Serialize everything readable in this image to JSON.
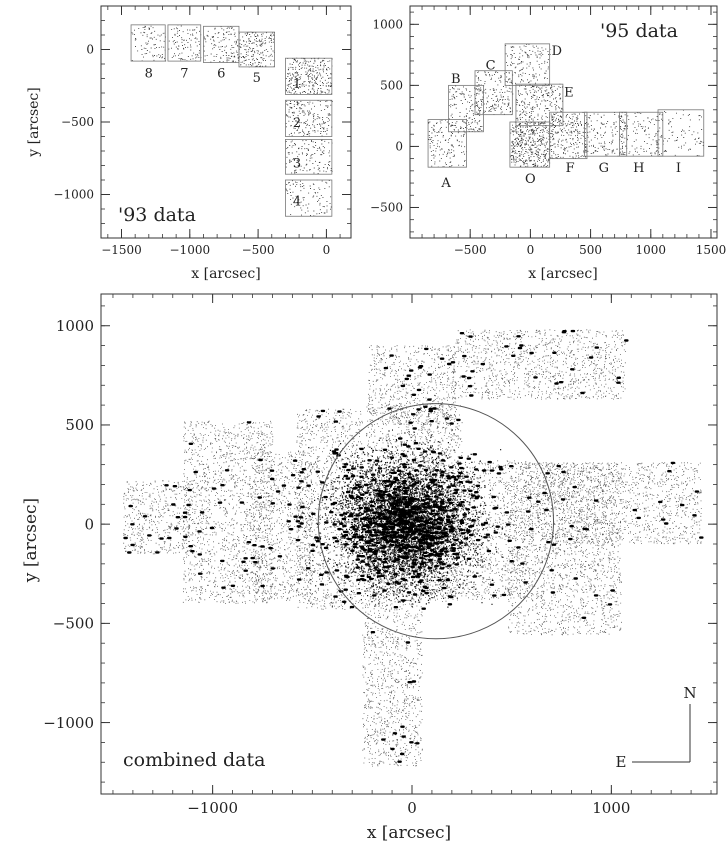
{
  "chart_data": [
    {
      "id": "p93",
      "type": "scatter",
      "title": "'93 data",
      "xlabel": "x [arcsec]",
      "ylabel": "y [arcsec]",
      "xlim": [
        -1650,
        180
      ],
      "ylim": [
        -1300,
        300
      ],
      "xticks": [
        -1500,
        -1000,
        -500,
        0
      ],
      "xtick_labels": [
        "−1500",
        "−1000",
        "−500",
        "0"
      ],
      "yticks": [
        -1000,
        -500,
        0
      ],
      "ytick_labels": [
        "−1000",
        "−500",
        "0"
      ],
      "fields": [
        {
          "label": "8",
          "x0": -1430,
          "x1": -1180,
          "y0": -80,
          "y1": 170,
          "lx": -1300,
          "ly": -160
        },
        {
          "label": "7",
          "x0": -1160,
          "x1": -920,
          "y0": -80,
          "y1": 170,
          "lx": -1040,
          "ly": -160
        },
        {
          "label": "6",
          "x0": -900,
          "x1": -640,
          "y0": -90,
          "y1": 160,
          "lx": -770,
          "ly": -160
        },
        {
          "label": "5",
          "x0": -640,
          "x1": -380,
          "y0": -120,
          "y1": 120,
          "lx": -510,
          "ly": -190
        },
        {
          "label": "1",
          "x0": -300,
          "x1": 40,
          "y0": -310,
          "y1": -60,
          "lx": -215,
          "ly": -230
        },
        {
          "label": "2",
          "x0": -300,
          "x1": 40,
          "y0": -600,
          "y1": -350,
          "lx": -215,
          "ly": -500
        },
        {
          "label": "3",
          "x0": -300,
          "x1": 40,
          "y0": -860,
          "y1": -620,
          "lx": -215,
          "ly": -780
        },
        {
          "label": "4",
          "x0": -300,
          "x1": 40,
          "y0": -1150,
          "y1": -900,
          "lx": -215,
          "ly": -1040
        }
      ]
    },
    {
      "id": "p95",
      "type": "scatter",
      "title": "'95 data",
      "xlabel": "x [arcsec]",
      "ylabel": "",
      "xlim": [
        -1000,
        1550
      ],
      "ylim": [
        -750,
        1150
      ],
      "xticks": [
        -500,
        0,
        500,
        1000,
        1500
      ],
      "xtick_labels": [
        "−500",
        "0",
        "500",
        "1000",
        "1500"
      ],
      "yticks": [
        -500,
        0,
        500,
        1000
      ],
      "ytick_labels": [
        "−500",
        "0",
        "500",
        "1000"
      ],
      "fields": [
        {
          "label": "A",
          "x0": -850,
          "x1": -530,
          "y0": -170,
          "y1": 220,
          "lx": -700,
          "ly": -290
        },
        {
          "label": "B",
          "x0": -680,
          "x1": -390,
          "y0": 120,
          "y1": 500,
          "lx": -620,
          "ly": 560
        },
        {
          "label": "C",
          "x0": -460,
          "x1": -150,
          "y0": 260,
          "y1": 620,
          "lx": -330,
          "ly": 670
        },
        {
          "label": "D",
          "x0": -210,
          "x1": 160,
          "y0": 500,
          "y1": 840,
          "lx": 220,
          "ly": 790
        },
        {
          "label": "E",
          "x0": -120,
          "x1": 270,
          "y0": 170,
          "y1": 510,
          "lx": 320,
          "ly": 450
        },
        {
          "label": "O",
          "x0": -170,
          "x1": 160,
          "y0": -170,
          "y1": 200,
          "lx": 0,
          "ly": -260
        },
        {
          "label": "F",
          "x0": 160,
          "x1": 470,
          "y0": -100,
          "y1": 280,
          "lx": 330,
          "ly": -170
        },
        {
          "label": "G",
          "x0": 450,
          "x1": 800,
          "y0": -80,
          "y1": 280,
          "lx": 610,
          "ly": -170
        },
        {
          "label": "H",
          "x0": 740,
          "x1": 1100,
          "y0": -80,
          "y1": 280,
          "lx": 900,
          "ly": -170
        },
        {
          "label": "I",
          "x0": 1060,
          "x1": 1440,
          "y0": -80,
          "y1": 300,
          "lx": 1230,
          "ly": -170
        }
      ]
    },
    {
      "id": "pc",
      "type": "scatter",
      "title": "combined data",
      "xlabel": "x [arcsec]",
      "ylabel": "y [arcsec]",
      "xlim": [
        -1560,
        1530
      ],
      "ylim": [
        -1360,
        1160
      ],
      "xticks": [
        -1000,
        0,
        1000
      ],
      "xtick_labels": [
        "−1000",
        "0",
        "1000"
      ],
      "yticks": [
        -1000,
        -500,
        0,
        500,
        1000
      ],
      "ytick_labels": [
        "−1000",
        "−500",
        "0",
        "500",
        "1000"
      ],
      "circle": {
        "cx": 120,
        "cy": 15,
        "r": 590
      },
      "compass": {
        "north": "N",
        "east": "E"
      }
    }
  ]
}
